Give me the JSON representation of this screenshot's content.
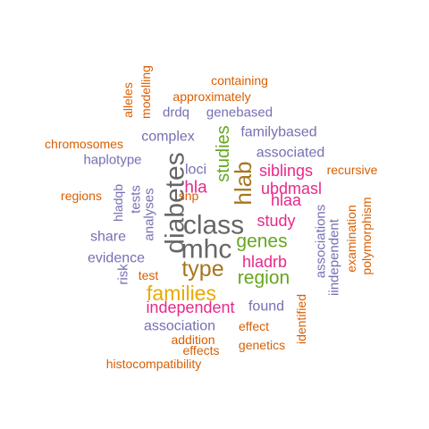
{
  "palette": {
    "orange": "#d95f02",
    "purple": "#7570b3",
    "magenta": "#e7298a",
    "green": "#66a61e",
    "gold": "#e6ab02",
    "brown": "#a6761d",
    "gray": "#666666"
  },
  "words": [
    {
      "text": "containing",
      "color": "orange"
    },
    {
      "text": "modelling",
      "color": "orange"
    },
    {
      "text": "alleles",
      "color": "orange"
    },
    {
      "text": "approximately",
      "color": "orange"
    },
    {
      "text": "drdq",
      "color": "purple"
    },
    {
      "text": "genebased",
      "color": "purple"
    },
    {
      "text": "familybased",
      "color": "purple"
    },
    {
      "text": "complex",
      "color": "purple"
    },
    {
      "text": "chromosomes",
      "color": "orange"
    },
    {
      "text": "studies",
      "color": "green"
    },
    {
      "text": "associated",
      "color": "purple"
    },
    {
      "text": "haplotype",
      "color": "purple"
    },
    {
      "text": "diabetes",
      "color": "gray"
    },
    {
      "text": "hlab",
      "color": "brown"
    },
    {
      "text": "loci",
      "color": "purple"
    },
    {
      "text": "siblings",
      "color": "magenta"
    },
    {
      "text": "recursive",
      "color": "orange"
    },
    {
      "text": "hla",
      "color": "magenta"
    },
    {
      "text": "ubdmasl",
      "color": "magenta"
    },
    {
      "text": "regions",
      "color": "orange"
    },
    {
      "text": "tests",
      "color": "purple"
    },
    {
      "text": "snp",
      "color": "orange"
    },
    {
      "text": "hlaa",
      "color": "magenta"
    },
    {
      "text": "hladqb",
      "color": "purple"
    },
    {
      "text": "analyses",
      "color": "purple"
    },
    {
      "text": "class",
      "color": "gray"
    },
    {
      "text": "study",
      "color": "magenta"
    },
    {
      "text": "associations",
      "color": "purple"
    },
    {
      "text": "examination",
      "color": "orange"
    },
    {
      "text": "polymorphism",
      "color": "orange"
    },
    {
      "text": "share",
      "color": "purple"
    },
    {
      "text": "mhc",
      "color": "gray"
    },
    {
      "text": "genes",
      "color": "green"
    },
    {
      "text": "iindependent",
      "color": "purple"
    },
    {
      "text": "evidence",
      "color": "purple"
    },
    {
      "text": "hladrb",
      "color": "magenta"
    },
    {
      "text": "type",
      "color": "brown"
    },
    {
      "text": "risk",
      "color": "purple"
    },
    {
      "text": "test",
      "color": "orange"
    },
    {
      "text": "region",
      "color": "green"
    },
    {
      "text": "families",
      "color": "gold"
    },
    {
      "text": "independent",
      "color": "magenta"
    },
    {
      "text": "found",
      "color": "purple"
    },
    {
      "text": "identified",
      "color": "orange"
    },
    {
      "text": "association",
      "color": "purple"
    },
    {
      "text": "effect",
      "color": "orange"
    },
    {
      "text": "addition",
      "color": "orange"
    },
    {
      "text": "genetics",
      "color": "orange"
    },
    {
      "text": "effects",
      "color": "orange"
    },
    {
      "text": "histocompatibility",
      "color": "orange"
    }
  ]
}
